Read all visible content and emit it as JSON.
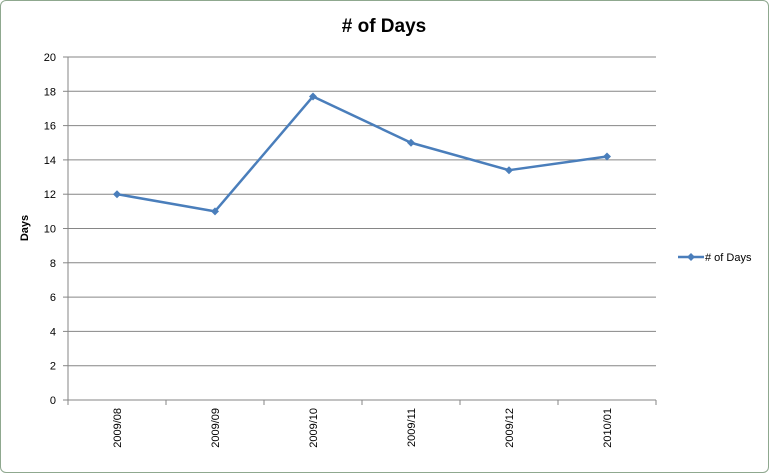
{
  "chart_data": {
    "type": "line",
    "title": "# of Days",
    "xlabel": "",
    "ylabel": "Days",
    "categories": [
      "2009/08",
      "2009/09",
      "2009/10",
      "2009/11",
      "2009/12",
      "2010/01"
    ],
    "series": [
      {
        "name": "# of Days",
        "values": [
          12,
          11,
          17.7,
          15,
          13.4,
          14.2
        ],
        "color": "#4a7ebb"
      }
    ],
    "ylim": [
      0,
      20
    ],
    "yticks": [
      0,
      2,
      4,
      6,
      8,
      10,
      12,
      14,
      16,
      18,
      20
    ],
    "grid": true,
    "legend": "right",
    "marker": "diamond"
  }
}
